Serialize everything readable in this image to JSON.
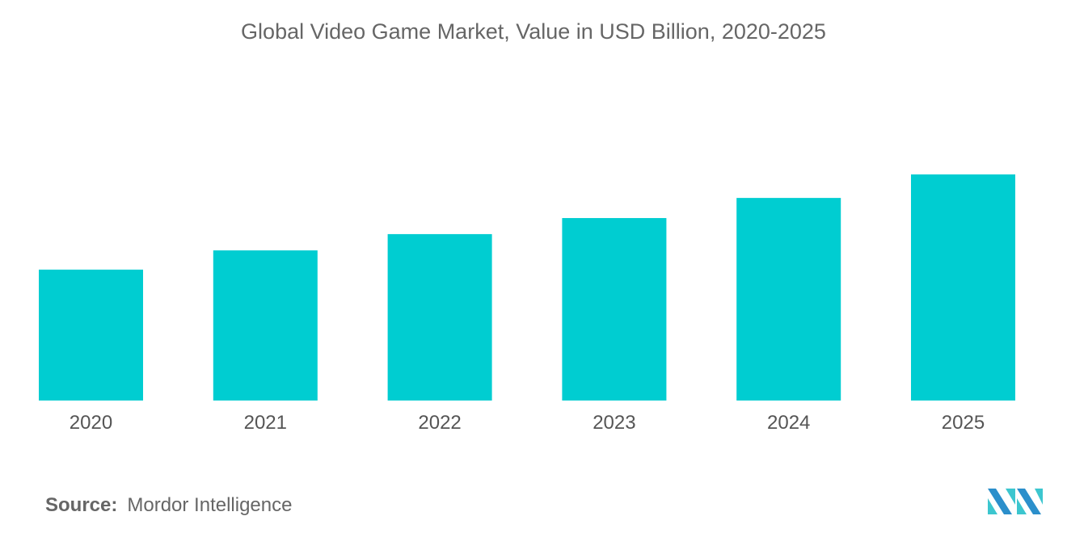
{
  "chart_data": {
    "type": "bar",
    "title": "Global Video Game Market, Value in USD Billion, 2020-2025",
    "categories": [
      "2020",
      "2021",
      "2022",
      "2023",
      "2024",
      "2025"
    ],
    "values": [
      57.9,
      66.4,
      73.6,
      80.7,
      89.6,
      100
    ],
    "value_note_relative": true,
    "xlabel": "",
    "ylabel": "",
    "ylim": [
      0,
      100
    ],
    "grid": false,
    "bar_color": "#00CDD1"
  },
  "source": {
    "label": "Source:",
    "text": "Mordor Intelligence"
  },
  "logo": {
    "colors": [
      "#2B8FCB",
      "#3CC6CF"
    ]
  }
}
